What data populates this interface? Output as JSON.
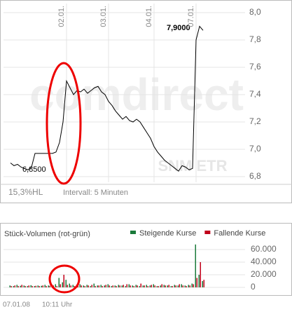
{
  "chart_data": [
    {
      "type": "line",
      "color": "#000000",
      "values": [
        6.9,
        6.88,
        6.89,
        6.87,
        6.86,
        6.85,
        6.87,
        6.97,
        6.97,
        6.97,
        6.97,
        6.97,
        6.97,
        6.98,
        7.05,
        7.2,
        7.5,
        7.45,
        7.4,
        7.43,
        7.42,
        7.44,
        7.41,
        7.43,
        7.45,
        7.46,
        7.42,
        7.4,
        7.35,
        7.32,
        7.28,
        7.25,
        7.22,
        7.24,
        7.21,
        7.2,
        7.22,
        7.2,
        7.16,
        7.12,
        7.08,
        7.02,
        6.98,
        6.95,
        6.92,
        6.9,
        6.88,
        6.86,
        6.84,
        6.88,
        6.87,
        6.85,
        6.86,
        7.8,
        7.9,
        7.87
      ],
      "xlim": [
        0,
        66
      ],
      "xticks": [
        {
          "value": 16,
          "label": "02.01."
        },
        {
          "value": 28,
          "label": "03.01."
        },
        {
          "value": 41,
          "label": "04.01."
        },
        {
          "value": 53,
          "label": "07.01."
        }
      ],
      "ylim": [
        6.8,
        8.0
      ],
      "yticks": [
        {
          "value": 6.8,
          "label": "6,8"
        },
        {
          "value": 7.0,
          "label": "7,0"
        },
        {
          "value": 7.2,
          "label": "7,2"
        },
        {
          "value": 7.4,
          "label": "7,4"
        },
        {
          "value": 7.6,
          "label": "7,6"
        },
        {
          "value": 7.8,
          "label": "7,8"
        },
        {
          "value": 8.0,
          "label": "8,0"
        }
      ],
      "annotations": {
        "low": "6,8500",
        "high": "7,9000",
        "range": "15,3%HL",
        "interval": "Intervall: 5 Minuten",
        "watermark": "comdirect",
        "exchange": "SNM ETR"
      },
      "footer": {
        "date": "07.01.08",
        "time": "10:11 Uhr"
      }
    },
    {
      "type": "bar",
      "title": "Stück-Volumen (rot-grün)",
      "xlim": [
        0,
        66
      ],
      "ylim": [
        0,
        70000
      ],
      "yticks": [
        0,
        {
          "value": 20000,
          "label": "20.000"
        },
        {
          "value": 40000,
          "label": "40.000"
        },
        {
          "value": 60000,
          "label": "60.000"
        }
      ],
      "series": [
        {
          "name": "Steigende Kurse",
          "color": "#1a7a3a",
          "values": [
            3000,
            2000,
            4000,
            2500,
            3000,
            2000,
            3500,
            2000,
            3000,
            2500,
            4000,
            3000,
            2000,
            5000,
            15000,
            8000,
            12000,
            6000,
            4000,
            3000,
            5000,
            3000,
            4000,
            2000,
            6000,
            3000,
            4000,
            3000,
            5000,
            2000,
            3000,
            4000,
            3000,
            2000,
            5000,
            3000,
            4000,
            2000,
            3000,
            4000,
            3000,
            5000,
            2000,
            3000,
            4000,
            3000,
            2000,
            4000,
            3000,
            5000,
            3000,
            4000,
            6000,
            68000,
            20000,
            10000
          ]
        },
        {
          "name": "Fallende Kurse",
          "color": "#c0001a",
          "values": [
            2000,
            3000,
            2000,
            4000,
            2000,
            3000,
            2000,
            2500,
            2000,
            3000,
            2000,
            2500,
            3000,
            2000,
            5000,
            20000,
            4000,
            3000,
            2000,
            4000,
            3000,
            2000,
            3000,
            4000,
            2000,
            3000,
            2000,
            4000,
            3000,
            3000,
            2000,
            3000,
            4000,
            5000,
            3000,
            2000,
            3000,
            6000,
            3000,
            2000,
            4000,
            3000,
            2000,
            5000,
            3000,
            4000,
            2000,
            3000,
            5000,
            3000,
            2000,
            3000,
            5000,
            15000,
            40000,
            12000
          ]
        }
      ]
    }
  ]
}
